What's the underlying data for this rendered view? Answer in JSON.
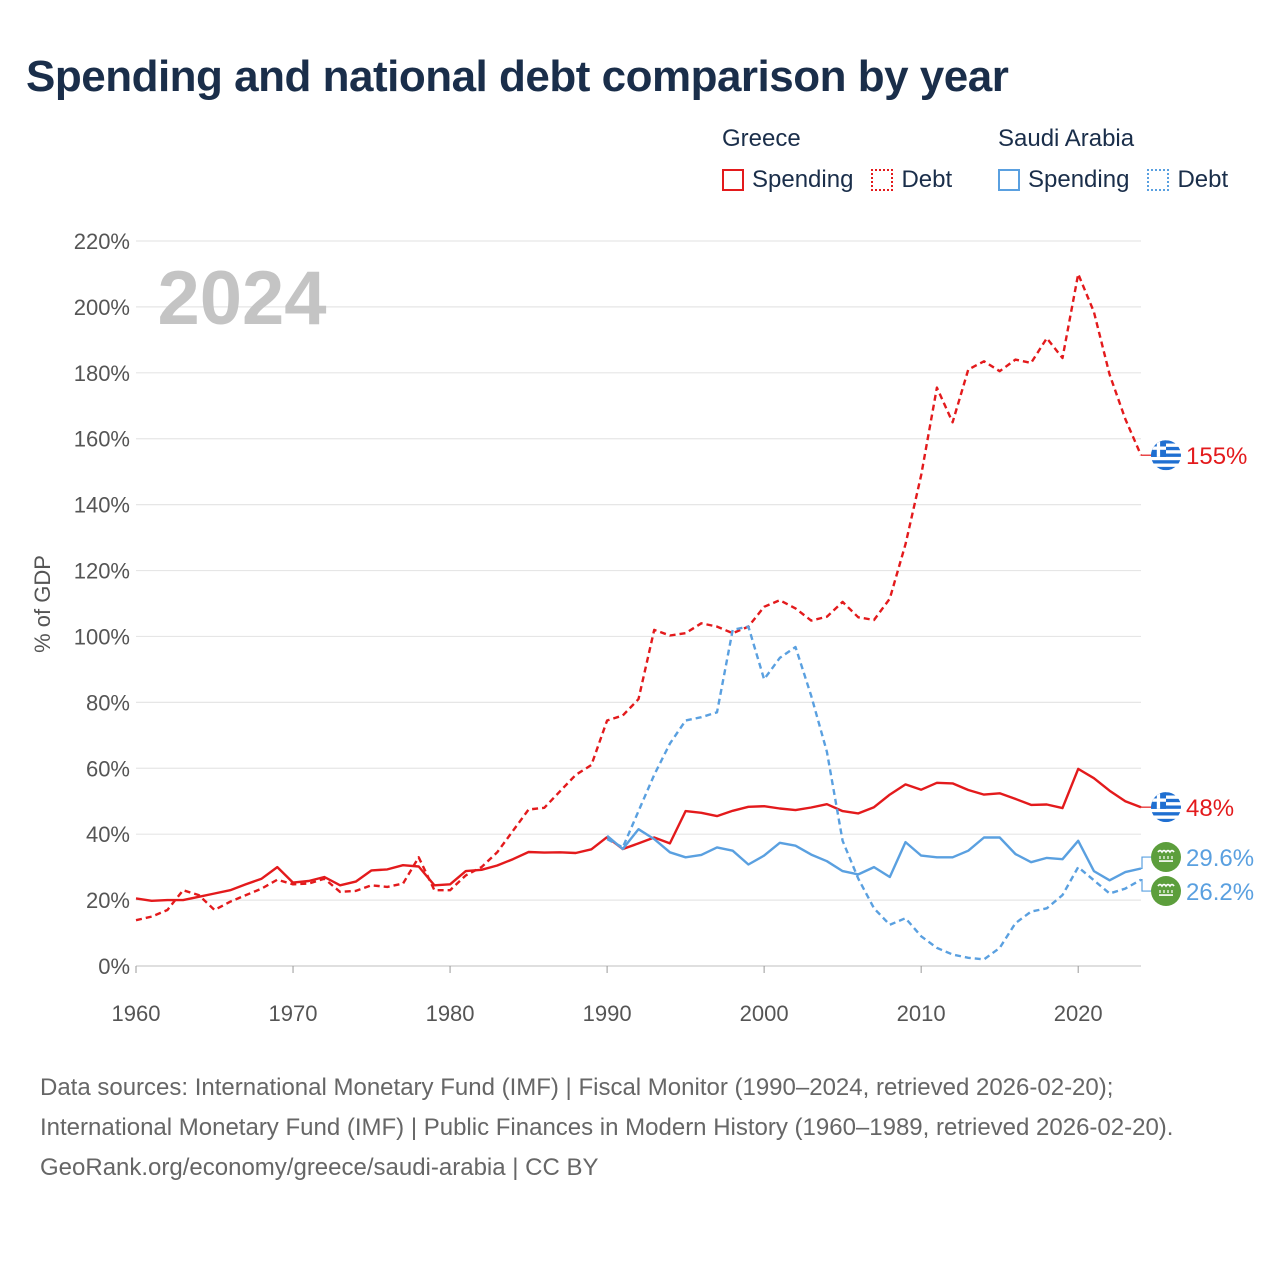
{
  "title": "Spending and national debt comparison by year",
  "legend": {
    "groups": [
      {
        "name": "Greece",
        "color": "#e31a1c",
        "items": [
          "Spending",
          "Debt"
        ]
      },
      {
        "name": "Saudi Arabia",
        "color": "#5aa0e0",
        "items": [
          "Spending",
          "Debt"
        ]
      }
    ]
  },
  "chart_data": {
    "type": "line",
    "year_label": "2024",
    "ylabel": "% of GDP",
    "xlim": [
      1960,
      2024
    ],
    "ylim": [
      0,
      220
    ],
    "xticks": [
      1960,
      1970,
      1980,
      1990,
      2000,
      2010,
      2020
    ],
    "yticks": [
      0,
      20,
      40,
      60,
      80,
      100,
      120,
      140,
      160,
      180,
      200,
      220
    ],
    "ytick_labels": [
      "0%",
      "20%",
      "40%",
      "60%",
      "80%",
      "100%",
      "120%",
      "140%",
      "160%",
      "180%",
      "200%",
      "220%"
    ],
    "grid": true,
    "series": [
      {
        "name": "Greece Spending",
        "country": "Greece",
        "style": "solid",
        "color": "#e31a1c",
        "end_label": "48%",
        "x": [
          1960,
          1961,
          1962,
          1963,
          1964,
          1965,
          1966,
          1967,
          1968,
          1969,
          1970,
          1971,
          1972,
          1973,
          1974,
          1975,
          1976,
          1977,
          1978,
          1979,
          1980,
          1981,
          1982,
          1983,
          1984,
          1985,
          1986,
          1987,
          1988,
          1989,
          1990,
          1991,
          1992,
          1993,
          1994,
          1995,
          1996,
          1997,
          1998,
          1999,
          2000,
          2001,
          2002,
          2003,
          2004,
          2005,
          2006,
          2007,
          2008,
          2009,
          2010,
          2011,
          2012,
          2013,
          2014,
          2015,
          2016,
          2017,
          2018,
          2019,
          2020,
          2021,
          2022,
          2023,
          2024
        ],
        "values": [
          20.5,
          19.8,
          20,
          20,
          21,
          22,
          23,
          24.8,
          26.5,
          30,
          25.3,
          25.8,
          27,
          24.5,
          25.6,
          29,
          29.3,
          30.6,
          30.2,
          24.5,
          24.8,
          28.8,
          29.2,
          30.5,
          32.4,
          34.6,
          34.4,
          34.5,
          34.3,
          35.4,
          39.1,
          35.5,
          37.2,
          39,
          37.2,
          47,
          46.5,
          45.5,
          47.1,
          48.3,
          48.5,
          47.8,
          47.3,
          48.1,
          49.1,
          47,
          46.3,
          48.2,
          52,
          55.1,
          53.5,
          55.6,
          55.4,
          53.4,
          52,
          52.4,
          50.7,
          48.9,
          49,
          47.9,
          59.8,
          57,
          53.2,
          50,
          48.2
        ]
      },
      {
        "name": "Greece Debt",
        "country": "Greece",
        "style": "dashed",
        "color": "#e31a1c",
        "end_label": "155%",
        "x": [
          1960,
          1961,
          1962,
          1963,
          1964,
          1965,
          1966,
          1967,
          1968,
          1969,
          1970,
          1971,
          1972,
          1973,
          1974,
          1975,
          1976,
          1977,
          1978,
          1979,
          1980,
          1981,
          1982,
          1983,
          1984,
          1985,
          1986,
          1987,
          1988,
          1989,
          1990,
          1991,
          1992,
          1993,
          1994,
          1995,
          1996,
          1997,
          1998,
          1999,
          2000,
          2001,
          2002,
          2003,
          2004,
          2005,
          2006,
          2007,
          2008,
          2009,
          2010,
          2011,
          2012,
          2013,
          2014,
          2015,
          2016,
          2017,
          2018,
          2019,
          2020,
          2021,
          2022,
          2023,
          2024
        ],
        "values": [
          13.9,
          15,
          17,
          23,
          21.5,
          17,
          19.5,
          21.5,
          23.5,
          26.2,
          24.8,
          25,
          26.5,
          22.5,
          22.8,
          24.5,
          24,
          25,
          33,
          23,
          23,
          27.5,
          30,
          34.5,
          41,
          47.5,
          48,
          53,
          58,
          61,
          74.5,
          76,
          81,
          102,
          100.3,
          101,
          104,
          103,
          101,
          103,
          109,
          111,
          108.5,
          104.8,
          106,
          110.5,
          105.8,
          105,
          111.5,
          128,
          149,
          175.5,
          165,
          181,
          183.5,
          180.5,
          184,
          183,
          190.5,
          184.5,
          210,
          198.5,
          179.5,
          166,
          155
        ]
      },
      {
        "name": "Saudi Arabia Spending",
        "country": "Saudi Arabia",
        "style": "solid",
        "color": "#5aa0e0",
        "end_label": "29.6%",
        "x": [
          1990,
          1991,
          1992,
          1993,
          1994,
          1995,
          1996,
          1997,
          1998,
          1999,
          2000,
          2001,
          2002,
          2003,
          2004,
          2005,
          2006,
          2007,
          2008,
          2009,
          2010,
          2011,
          2012,
          2013,
          2014,
          2015,
          2016,
          2017,
          2018,
          2019,
          2020,
          2021,
          2022,
          2023,
          2024
        ],
        "values": [
          39.5,
          35.5,
          41.5,
          38.5,
          34.5,
          33,
          33.7,
          36,
          35,
          30.8,
          33.5,
          37.4,
          36.5,
          33.8,
          31.8,
          28.8,
          27.8,
          30,
          27,
          37.6,
          33.5,
          33,
          33,
          35,
          39,
          39,
          34,
          31.5,
          32.8,
          32.4,
          38,
          28.8,
          26,
          28.5,
          29.6
        ]
      },
      {
        "name": "Saudi Arabia Debt",
        "country": "Saudi Arabia",
        "style": "dashed",
        "color": "#5aa0e0",
        "end_label": "26.2%",
        "x": [
          1990,
          1991,
          1992,
          1993,
          1994,
          1995,
          1996,
          1997,
          1998,
          1999,
          2000,
          2001,
          2002,
          2003,
          2004,
          2005,
          2006,
          2007,
          2008,
          2009,
          2010,
          2011,
          2012,
          2013,
          2014,
          2015,
          2016,
          2017,
          2018,
          2019,
          2020,
          2021,
          2022,
          2023,
          2024
        ],
        "values": [
          38.5,
          36,
          47,
          58,
          67.5,
          74.5,
          75.5,
          77,
          102,
          103,
          87,
          93.5,
          96.8,
          82,
          65,
          38,
          26.5,
          17.5,
          12.5,
          14.5,
          9,
          5.5,
          3.5,
          2.5,
          2,
          5.5,
          13,
          16.5,
          17.5,
          21.5,
          30,
          26,
          22,
          23.5,
          26.2
        ]
      }
    ]
  },
  "footer": {
    "sources": "Data sources: International Monetary Fund (IMF) | Fiscal Monitor (1990–2024, retrieved 2026-02-20); International Monetary Fund (IMF) | Public Finances in Modern History (1960–1989, retrieved 2026-02-20).",
    "credit": "GeoRank.org/economy/greece/saudi-arabia | CC BY"
  }
}
